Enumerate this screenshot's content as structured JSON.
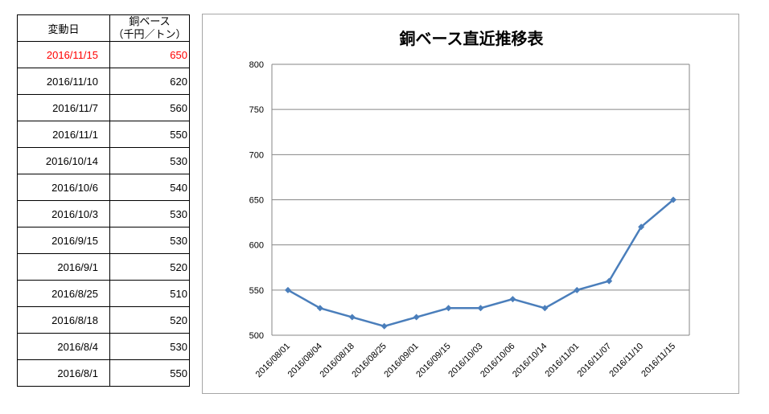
{
  "table": {
    "header": {
      "date": "変動日",
      "price_line1": "銅ベース",
      "price_line2": "（千円／トン）"
    },
    "rows": [
      {
        "date": "2016/11/15",
        "price": "650"
      },
      {
        "date": "2016/11/10",
        "price": "620"
      },
      {
        "date": "2016/11/7",
        "price": "560"
      },
      {
        "date": "2016/11/1",
        "price": "550"
      },
      {
        "date": "2016/10/14",
        "price": "530"
      },
      {
        "date": "2016/10/6",
        "price": "540"
      },
      {
        "date": "2016/10/3",
        "price": "530"
      },
      {
        "date": "2016/9/15",
        "price": "530"
      },
      {
        "date": "2016/9/1",
        "price": "520"
      },
      {
        "date": "2016/8/25",
        "price": "510"
      },
      {
        "date": "2016/8/18",
        "price": "520"
      },
      {
        "date": "2016/8/4",
        "price": "530"
      },
      {
        "date": "2016/8/1",
        "price": "550"
      }
    ],
    "latest_color": "#ff0000"
  },
  "chart_data": {
    "type": "line",
    "title": "銅ベース直近推移表",
    "xlabel": "",
    "ylabel": "",
    "categories": [
      "2016/08/01",
      "2016/08/04",
      "2016/08/18",
      "2016/08/25",
      "2016/09/01",
      "2016/09/15",
      "2016/10/03",
      "2016/10/06",
      "2016/10/14",
      "2016/11/01",
      "2016/11/07",
      "2016/11/10",
      "2016/11/15"
    ],
    "series": [
      {
        "values": [
          550,
          530,
          520,
          510,
          520,
          530,
          530,
          540,
          530,
          550,
          560,
          620,
          650
        ],
        "color": "#4a7ebb"
      }
    ],
    "ylim": [
      500,
      800
    ],
    "yticks": [
      500,
      550,
      600,
      650,
      700,
      750,
      800
    ],
    "grid": true,
    "legend": "none",
    "marker": "diamond"
  }
}
